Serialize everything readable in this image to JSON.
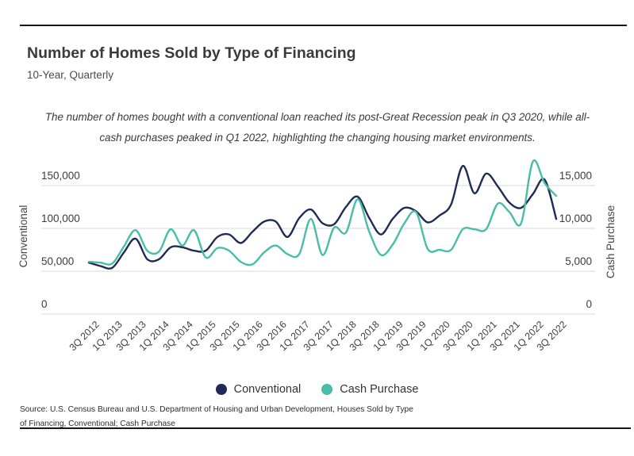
{
  "header": {
    "title": "Number of Homes Sold by Type of Financing",
    "subtitle": "10-Year, Quarterly"
  },
  "annotation": {
    "line1": "The number of homes bought with a conventional loan reached its post-Great Recession peak in Q3 2020, while all-",
    "line2": "cash purchases peaked in Q1 2022, highlighting the changing housing market environments."
  },
  "source": {
    "line1": "Source:  U.S. Census Bureau and U.S. Department of Housing and Urban Development, Houses Sold by Type",
    "line2": "of Financing, Conventional; Cash Purchase"
  },
  "colors": {
    "conventional": "#1f2a56",
    "cash": "#48bda7",
    "gridline": "#d8d8d8",
    "rule": "#161616"
  },
  "chart_data": {
    "type": "line",
    "title": "Number of Homes Sold by Type of Financing",
    "subtitle": "10-Year, Quarterly",
    "grid": true,
    "legend_position": "bottom",
    "x": [
      "3Q 2012",
      "4Q 2012",
      "1Q 2013",
      "2Q 2013",
      "3Q 2013",
      "4Q 2013",
      "1Q 2014",
      "2Q 2014",
      "3Q 2014",
      "4Q 2014",
      "1Q 2015",
      "2Q 2015",
      "3Q 2015",
      "4Q 2015",
      "1Q 2016",
      "2Q 2016",
      "3Q 2016",
      "4Q 2016",
      "1Q 2017",
      "2Q 2017",
      "3Q 2017",
      "4Q 2017",
      "1Q 2018",
      "2Q 2018",
      "3Q 2018",
      "4Q 2018",
      "1Q 2019",
      "2Q 2019",
      "3Q 2019",
      "4Q 2019",
      "1Q 2020",
      "2Q 2020",
      "3Q 2020",
      "4Q 2020",
      "1Q 2021",
      "2Q 2021",
      "3Q 2021",
      "4Q 2021",
      "1Q 2022",
      "2Q 2022",
      "3Q 2022"
    ],
    "x_tick_labels": [
      "3Q 2012",
      "1Q 2013",
      "3Q 2013",
      "1Q 2014",
      "3Q 2014",
      "1Q 2015",
      "3Q 2015",
      "1Q 2016",
      "3Q 2016",
      "1Q 2017",
      "3Q 2017",
      "1Q 2018",
      "3Q 2018",
      "1Q 2019",
      "3Q 2019",
      "1Q 2020",
      "3Q 2020",
      "1Q 2021",
      "3Q 2021",
      "1Q 2022",
      "3Q 2022"
    ],
    "left_axis": {
      "label": "Conventional",
      "ticks": [
        "0",
        "50,000",
        "100,000",
        "150,000"
      ],
      "tick_values": [
        0,
        50000,
        100000,
        150000
      ],
      "range": [
        0,
        185000
      ]
    },
    "right_axis": {
      "label": "Cash Purchase",
      "ticks": [
        "0",
        "5,000",
        "10,000",
        "15,000"
      ],
      "tick_values": [
        0,
        5000,
        10000,
        15000
      ],
      "range": [
        0,
        18500
      ]
    },
    "series": [
      {
        "name": "Conventional",
        "axis": "left",
        "color": "#1f2a56",
        "values": [
          60000,
          56000,
          54000,
          72000,
          88000,
          64000,
          64000,
          78000,
          78000,
          74000,
          74000,
          90000,
          93000,
          83000,
          96000,
          108000,
          108000,
          90000,
          112000,
          122000,
          106000,
          105000,
          125000,
          137000,
          112000,
          93000,
          111000,
          124000,
          120000,
          107000,
          115000,
          128000,
          173000,
          141000,
          164000,
          149000,
          130000,
          124000,
          140000,
          157000,
          111000
        ]
      },
      {
        "name": "Cash Purchase",
        "axis": "right",
        "color": "#48bda7",
        "values": [
          6100,
          6000,
          5900,
          7900,
          9800,
          7400,
          7300,
          9900,
          8000,
          9800,
          6600,
          7700,
          7400,
          6100,
          5800,
          7200,
          8000,
          7000,
          7000,
          11100,
          6900,
          10100,
          9500,
          13400,
          9600,
          6900,
          8100,
          10600,
          11900,
          7600,
          7500,
          7500,
          9900,
          9900,
          9900,
          12900,
          11900,
          10600,
          17800,
          15300,
          13800
        ]
      }
    ]
  }
}
